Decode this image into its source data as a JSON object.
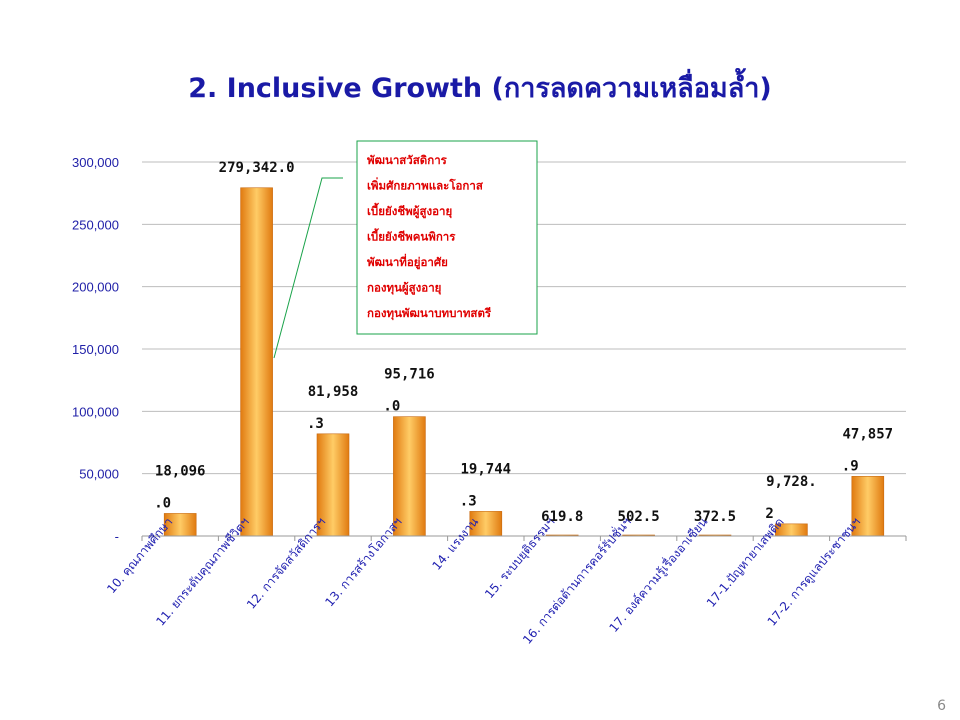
{
  "title": "2. Inclusive Growth (การลดความเหลื่อมล้ำ)",
  "page_number": "6",
  "colors": {
    "bar_light": "#ffcc66",
    "bar_dark": "#e07a10",
    "axis_label": "#2020a8",
    "callout_border": "#1aa34a",
    "callout_text": "#e00000",
    "title": "#1a1aa6"
  },
  "callout": {
    "lines": [
      "พัฒนาสวัสดิการ",
      "เพิ่มศักยภาพและโอกาส",
      "เบี้ยยังชีพผู้สูงอายุ",
      "เบี้ยยังชีพคนพิการ",
      "พัฒนาที่อยู่อาศัย",
      "กองทุนผู้สูงอายุ",
      "กองทุนพัฒนาบทบาทสตรี"
    ]
  },
  "chart_data": {
    "type": "bar",
    "categories": [
      "10. คุณภาพศึกษา",
      "11. ยกระดับคุณภาพชีวิตฯ",
      "12. การจัดสวัสดิการฯ",
      "13. การสร้างโอกาสฯ",
      "14. แรงงาน",
      "15. ระบบยุติธรรมฯ",
      "16. การต่อต้านการคอร์รัปชั่นฯ",
      "17. องค์ความรู้เรื่องอาเซียน",
      "17-1.ปัญหายาเสพติด",
      "17-2. การดูแลประชาชนฯ"
    ],
    "values": [
      18096.0,
      279342.0,
      81958.3,
      95716.0,
      19744.3,
      619.8,
      502.5,
      372.5,
      9728.2,
      47857.9
    ],
    "data_labels": [
      [
        "18,096",
        ".0"
      ],
      [
        "279,342.0"
      ],
      [
        "81,958",
        ".3"
      ],
      [
        "95,716",
        ".0"
      ],
      [
        "19,744",
        ".3"
      ],
      [
        "619.8"
      ],
      [
        "502.5"
      ],
      [
        "372.5"
      ],
      [
        "9,728.",
        "2"
      ],
      [
        "47,857",
        ".9"
      ]
    ],
    "yticks": [
      "-",
      "50,000",
      "100,000",
      "150,000",
      "200,000",
      "250,000",
      "300,000"
    ],
    "ylim": [
      0,
      300000
    ],
    "grid": true,
    "legend": "none"
  }
}
